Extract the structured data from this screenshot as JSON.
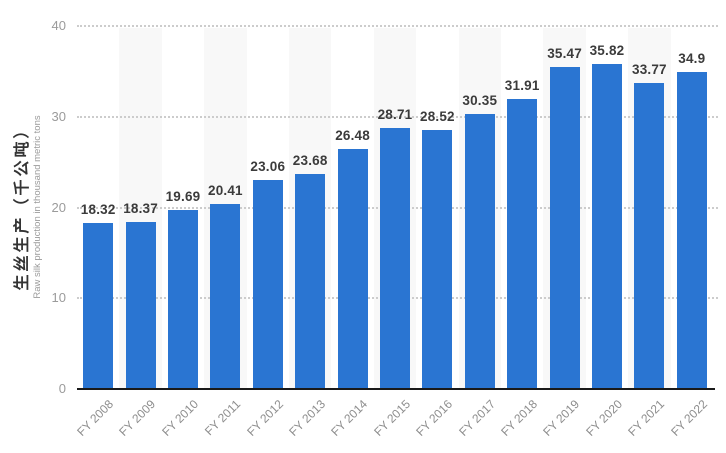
{
  "chart_data": {
    "type": "bar",
    "title": "",
    "categories": [
      "FY 2008",
      "FY 2009",
      "FY 2010",
      "FY 2011",
      "FY 2012",
      "FY 2013",
      "FY 2014",
      "FY 2015",
      "FY 2016",
      "FY 2017",
      "FY 2018",
      "FY 2019",
      "FY 2020",
      "FY 2021",
      "FY 2022"
    ],
    "values": [
      18.32,
      18.37,
      19.69,
      20.41,
      23.06,
      23.68,
      26.48,
      28.71,
      28.52,
      30.35,
      31.91,
      35.47,
      35.82,
      33.77,
      34.9
    ],
    "value_labels": [
      "18.32",
      "18.37",
      "19.69",
      "20.41",
      "23.06",
      "23.68",
      "26.48",
      "28.71",
      "28.52",
      "30.35",
      "31.91",
      "35.47",
      "35.82",
      "33.77",
      "34.9"
    ],
    "xlabel": "",
    "ylabel_primary": "生丝生产（千公吨）",
    "ylabel_secondary": "Raw silk production in thousand metric tons",
    "ylim": [
      0,
      40
    ],
    "yticks": [
      0,
      10,
      20,
      30,
      40
    ],
    "grid": "horizontal-dotted",
    "legend": "none",
    "striped_columns": "every-second-category",
    "colors": {
      "bar": "#2a75d2",
      "stripe": "#f8f8f8",
      "grid": "#cccccc",
      "axis": "#1a1a1a",
      "value_label": "#3b3b3b",
      "tick_label": "#9b9b9b",
      "x_label": "#8d8d8d",
      "background": "#ffffff"
    }
  }
}
